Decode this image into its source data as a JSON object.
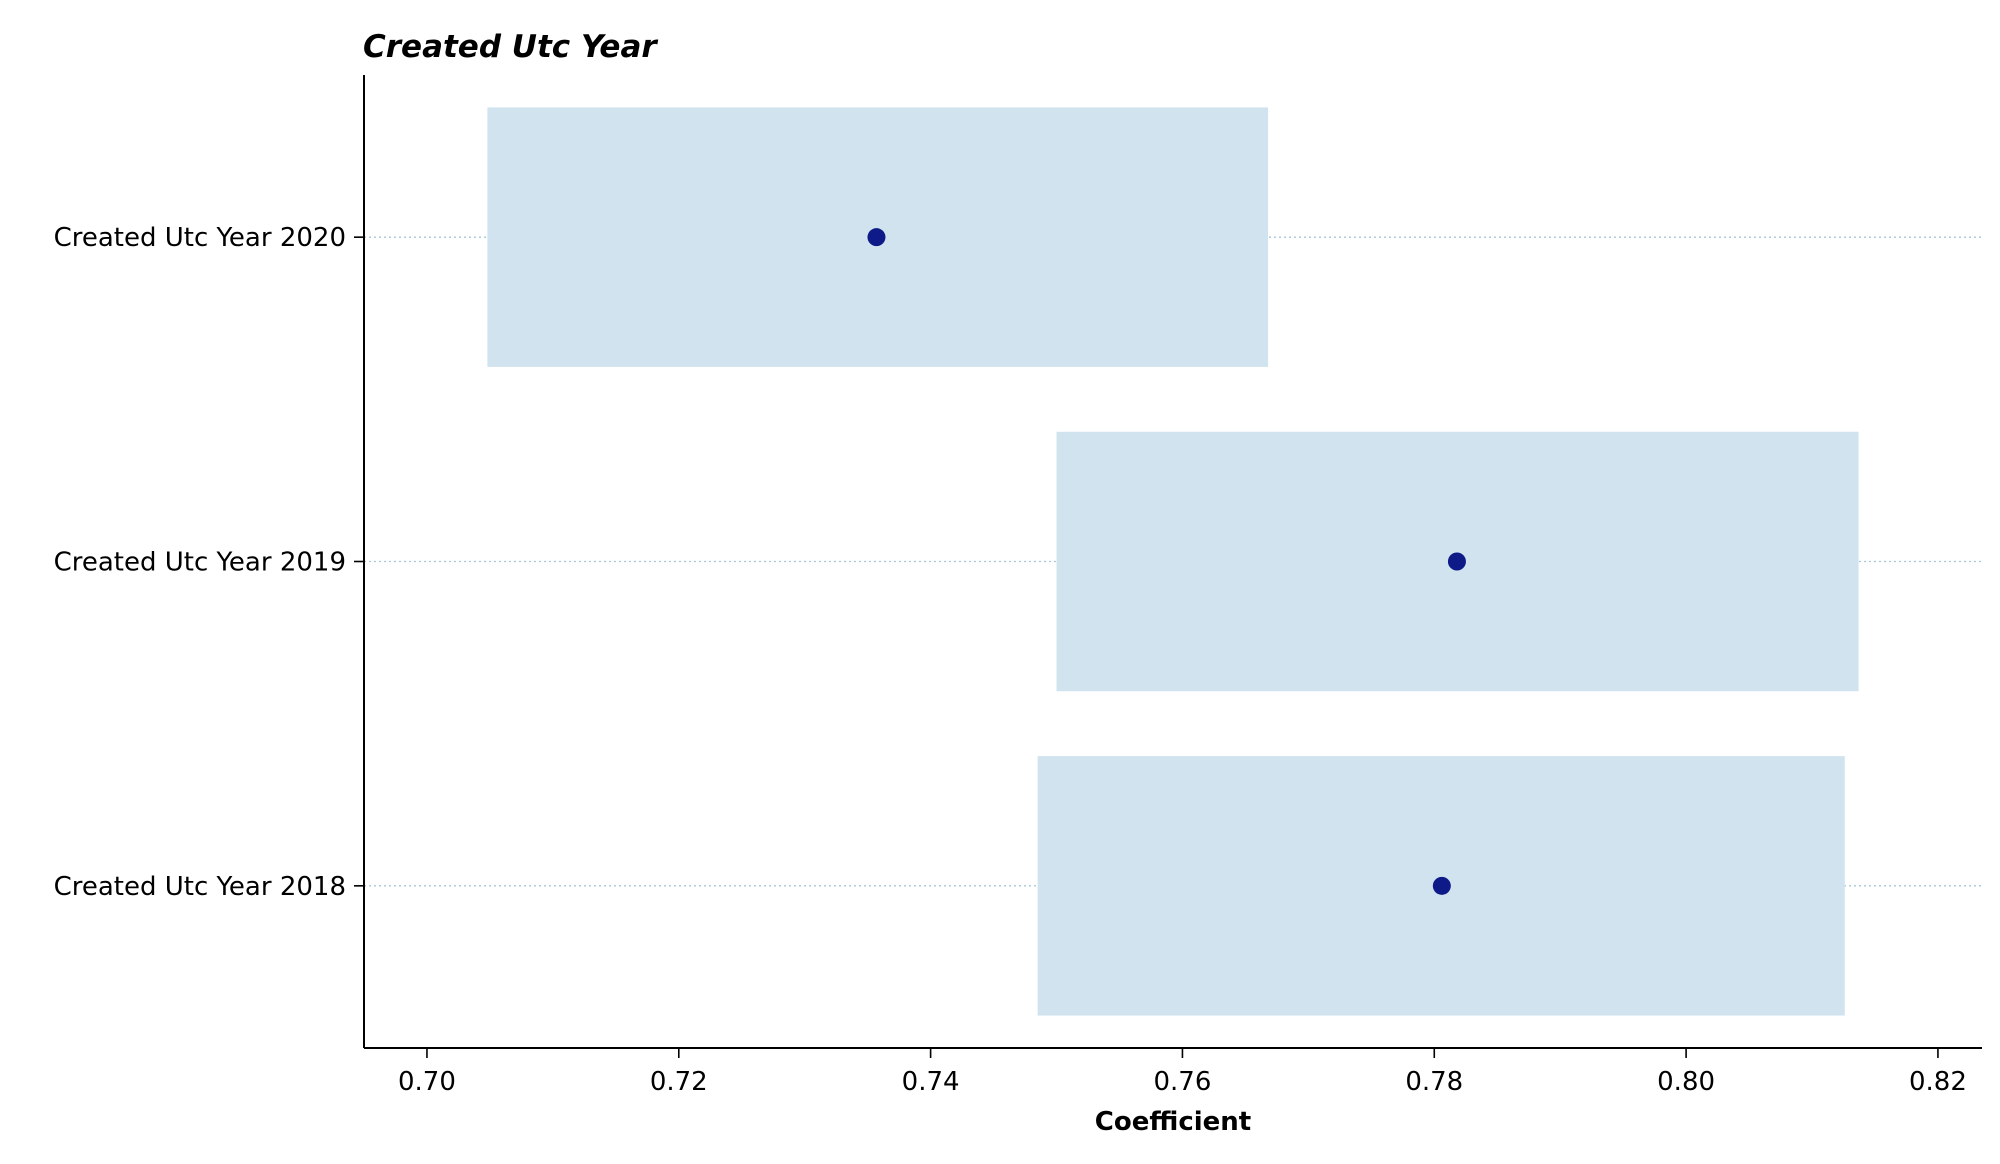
{
  "chart_data": {
    "type": "forest",
    "title": "Created Utc Year",
    "xlabel": "Coefficient",
    "ylabel": "",
    "xlim": [
      0.695,
      0.8235
    ],
    "xticks": [
      "0.70",
      "0.72",
      "0.74",
      "0.76",
      "0.78",
      "0.80",
      "0.82"
    ],
    "grid": "horizontal dotted lines at each category",
    "categories": [
      "Created Utc Year 2020",
      "Created Utc Year 2019",
      "Created Utc Year 2018"
    ],
    "series": [
      {
        "estimates": [
          0.7357,
          0.7818,
          0.7806
        ],
        "ci_low": [
          0.7048,
          0.75,
          0.7485
        ],
        "ci_high": [
          0.7668,
          0.8137,
          0.8126
        ]
      }
    ],
    "colors": {
      "point": "#0d1a87",
      "interval": "#d1e3ef",
      "grid": "#a9c6d6",
      "axis": "#000000"
    }
  }
}
